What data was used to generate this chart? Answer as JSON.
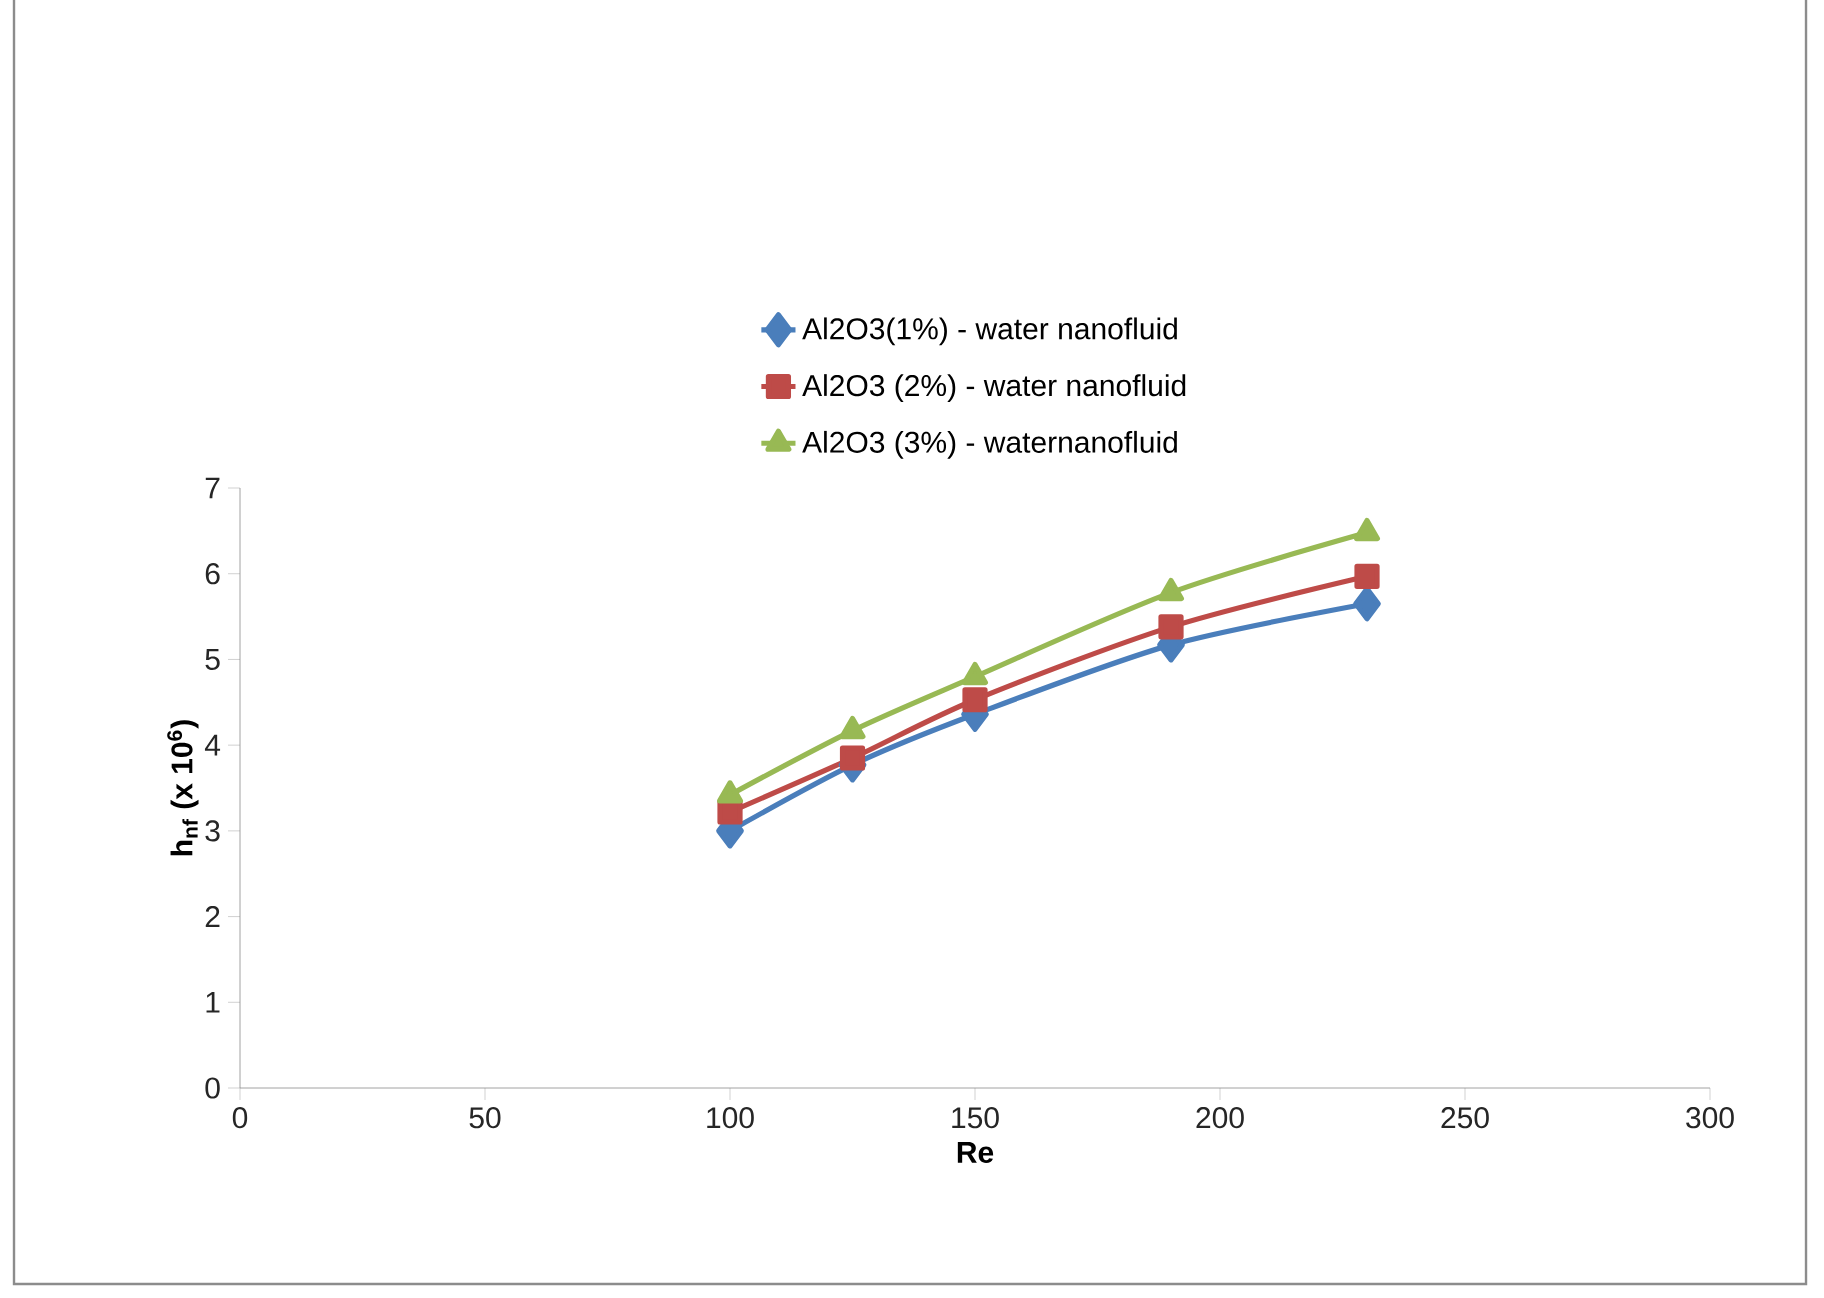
{
  "chart_data": {
    "type": "line",
    "xlabel": "Re",
    "ylabel": "h$_{nf}$ (x 10$^{6}$)",
    "x": [
      100,
      125,
      150,
      190,
      230
    ],
    "series": [
      {
        "name": "Al2O3(1%) - water nanofluid",
        "color": "#4a7ebb",
        "marker": "diamond",
        "values": [
          3.0,
          3.77,
          4.36,
          5.17,
          5.65
        ]
      },
      {
        "name": "Al2O3 (2%) - water nanofluid",
        "color": "#be4b48",
        "marker": "square",
        "values": [
          3.22,
          3.85,
          4.53,
          5.38,
          5.97
        ]
      },
      {
        "name": "Al2O3 (3%) - waternanofluid",
        "color": "#98b954",
        "marker": "triangle",
        "values": [
          3.42,
          4.17,
          4.8,
          5.78,
          6.48
        ]
      }
    ],
    "xlim": [
      0,
      300
    ],
    "xticks": [
      0,
      50,
      100,
      150,
      200,
      250,
      300
    ],
    "ylim": [
      0,
      7
    ],
    "yticks": [
      0,
      1,
      2,
      3,
      4,
      5,
      6,
      7
    ],
    "legend": "top",
    "grid": false,
    "line_style": "solid"
  }
}
